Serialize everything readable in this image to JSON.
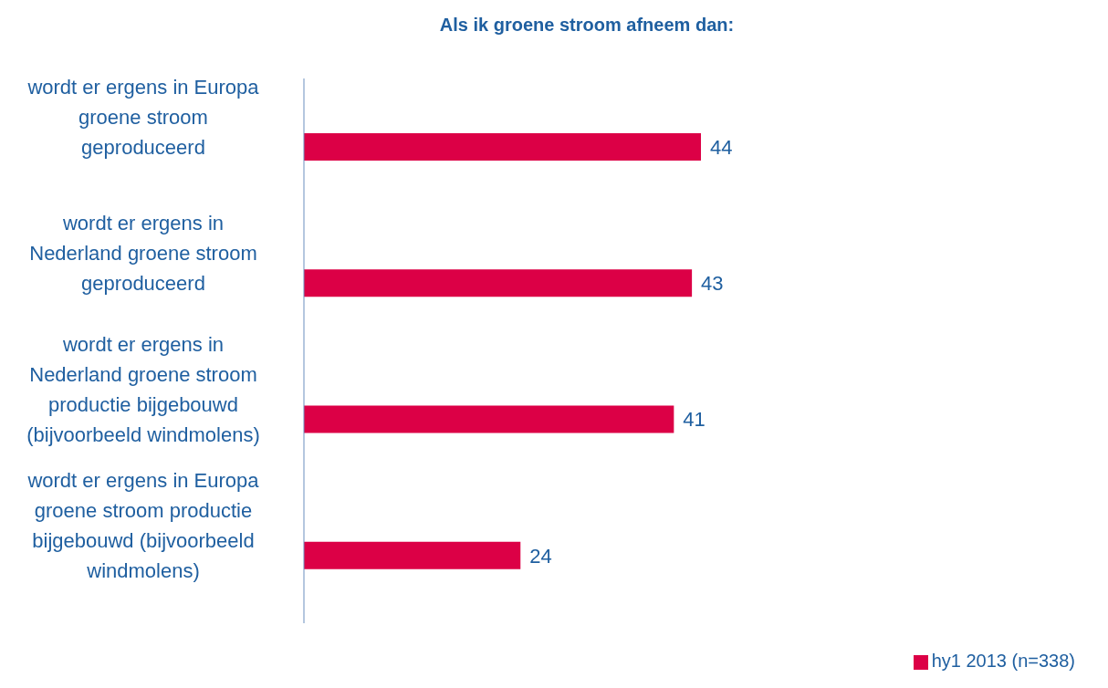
{
  "chart_data": {
    "type": "bar",
    "orientation": "horizontal",
    "title": "Als ik groene stroom afneem dan:",
    "categories": [
      "wordt er ergens in Europa groene stroom geproduceerd",
      "wordt er ergens in Nederland groene stroom geproduceerd",
      "wordt er ergens in Nederland groene stroom productie bijgebouwd (bijvoorbeeld windmolens)",
      "wordt er ergens in Europa groene stroom productie bijgebouwd (bijvoorbeeld windmolens)"
    ],
    "series": [
      {
        "name": "hy1 2013 (n=338)",
        "color": "#dc0046",
        "values": [
          44,
          43,
          41,
          24
        ]
      }
    ],
    "data_labels": true,
    "grid": false,
    "legend": "bottom right",
    "tick_labels": "y"
  }
}
